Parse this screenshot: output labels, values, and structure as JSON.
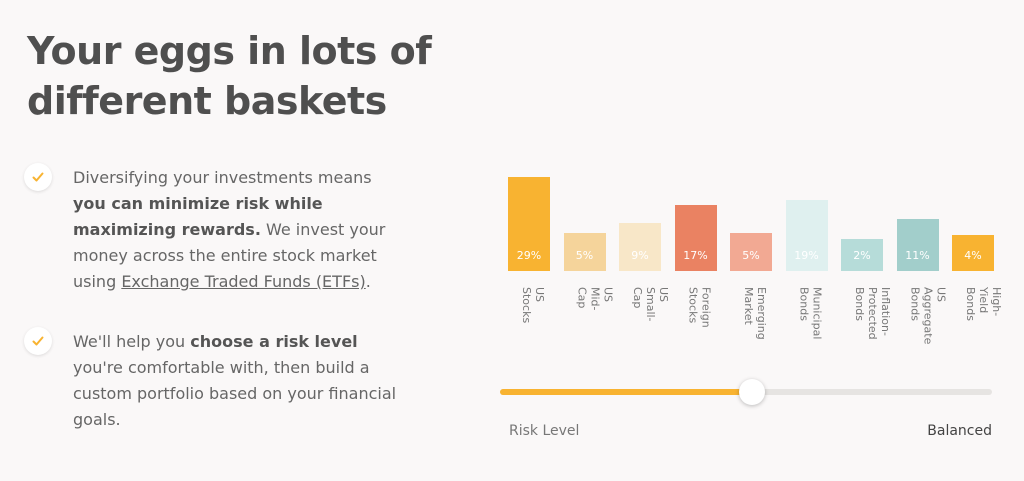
{
  "title": "Your eggs in lots of different baskets",
  "bullets": [
    [
      "Diversifying your investments means ",
      "you can minimize risk while maximizing rewards.",
      " We invest your money across the entire stock market using ",
      "Exchange Traded Funds (ETFs)",
      "."
    ],
    [
      "We'll help you ",
      "choose a risk level",
      " you're comfortable with, then build a custom portfolio based on your financial goals."
    ]
  ],
  "chart_data": {
    "type": "bar",
    "categories": [
      "US Stocks",
      "US Mid-Cap",
      "US Small-Cap",
      "Foreign Stocks",
      "Emerging Market",
      "Municipal Bonds",
      "Inflation-Protected Bonds",
      "US Aggregate Bonds",
      "High-Yield Bonds"
    ],
    "values": [
      29,
      5,
      9,
      17,
      5,
      19,
      2,
      11,
      4
    ],
    "value_labels": [
      "29%",
      "5%",
      "9%",
      "17%",
      "5%",
      "19%",
      "2%",
      "11%",
      "4%"
    ],
    "colors": [
      "#f8b331",
      "#f5d49b",
      "#f8e7c8",
      "#ea8262",
      "#f2a993",
      "#dff0ef",
      "#b6dcd9",
      "#a2cecb",
      "#f8b331"
    ]
  },
  "slider": {
    "label": "Risk Level",
    "value": "Balanced"
  }
}
